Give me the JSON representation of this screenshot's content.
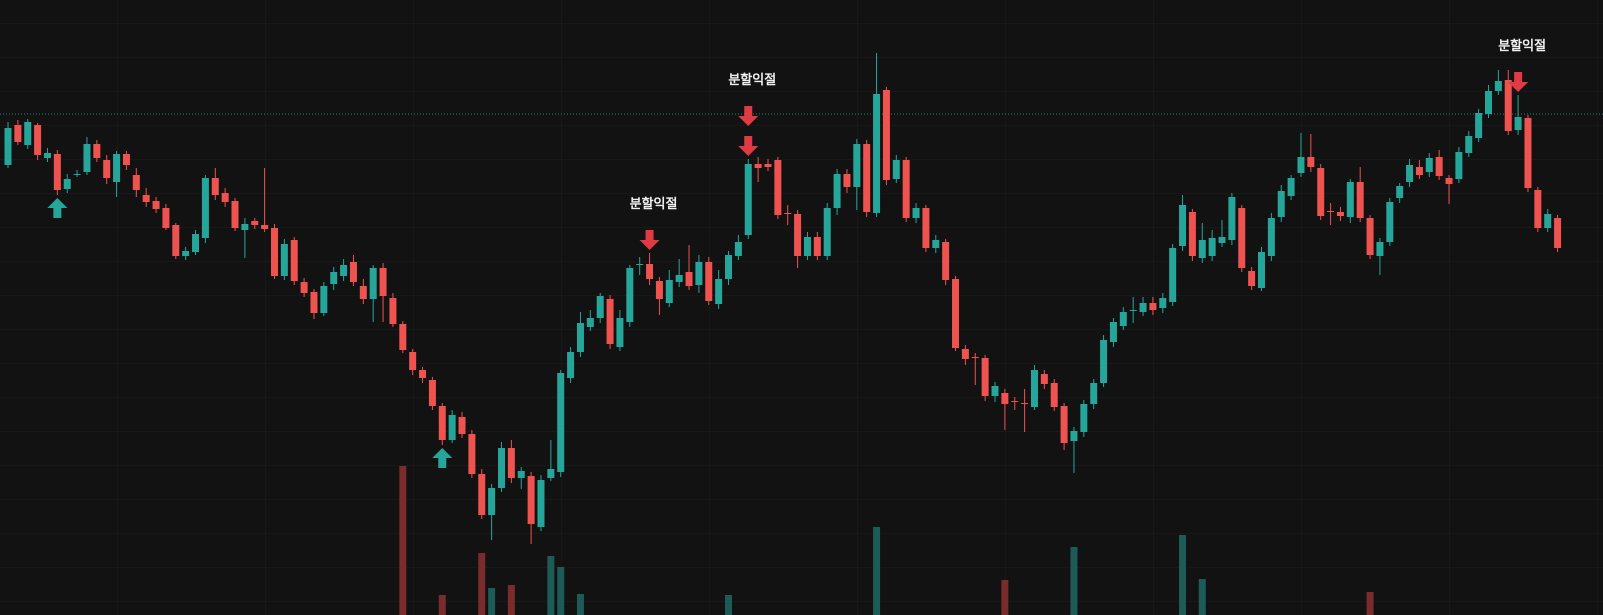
{
  "chart_data": {
    "type": "candlestick",
    "up_color": "#26a69a",
    "down_color": "#ef5350",
    "volume_up_color": "#1d5b56",
    "volume_down_color": "#7a2b2b",
    "ylim": [
      0,
      615
    ],
    "vlim": [
      0,
      150
    ],
    "hline": {
      "value": 501,
      "color": "#26a69a"
    },
    "ohlc": [
      [
        450,
        493,
        447,
        487
      ],
      [
        490,
        495,
        470,
        473
      ],
      [
        470,
        496,
        466,
        493
      ],
      [
        490,
        492,
        455,
        460
      ],
      [
        457,
        467,
        453,
        462
      ],
      [
        461,
        465,
        420,
        425
      ],
      [
        426,
        441,
        422,
        436
      ],
      [
        440,
        445,
        438,
        441
      ],
      [
        443,
        478,
        440,
        471
      ],
      [
        471,
        475,
        453,
        457
      ],
      [
        455,
        460,
        431,
        437
      ],
      [
        433,
        464,
        418,
        461
      ],
      [
        461,
        464,
        445,
        450
      ],
      [
        440,
        447,
        418,
        425
      ],
      [
        420,
        427,
        408,
        413
      ],
      [
        414,
        418,
        402,
        406
      ],
      [
        407,
        411,
        385,
        387
      ],
      [
        390,
        392,
        356,
        359
      ],
      [
        359,
        368,
        355,
        364
      ],
      [
        363,
        385,
        360,
        381
      ],
      [
        377,
        440,
        372,
        437
      ],
      [
        437,
        447,
        415,
        420
      ],
      [
        422,
        427,
        408,
        413
      ],
      [
        414,
        417,
        384,
        387
      ],
      [
        385,
        397,
        357,
        391
      ],
      [
        394,
        397,
        386,
        390
      ],
      [
        390,
        447,
        383,
        386
      ],
      [
        387,
        391,
        336,
        339
      ],
      [
        339,
        376,
        335,
        371
      ],
      [
        375,
        378,
        330,
        334
      ],
      [
        333,
        337,
        318,
        322
      ],
      [
        323,
        326,
        296,
        302
      ],
      [
        302,
        333,
        299,
        329
      ],
      [
        331,
        348,
        325,
        343
      ],
      [
        339,
        356,
        334,
        350
      ],
      [
        353,
        360,
        329,
        333
      ],
      [
        329,
        336,
        311,
        316
      ],
      [
        316,
        350,
        293,
        347
      ],
      [
        347,
        352,
        293,
        319
      ],
      [
        317,
        322,
        288,
        291
      ],
      [
        291,
        294,
        262,
        265
      ],
      [
        263,
        266,
        240,
        245
      ],
      [
        245,
        248,
        232,
        237
      ],
      [
        235,
        238,
        205,
        209
      ],
      [
        209,
        212,
        170,
        175
      ],
      [
        175,
        205,
        172,
        200
      ],
      [
        198,
        203,
        177,
        181
      ],
      [
        181,
        185,
        137,
        141
      ],
      [
        141,
        146,
        96,
        100
      ],
      [
        100,
        131,
        75,
        127
      ],
      [
        127,
        173,
        123,
        167
      ],
      [
        167,
        175,
        132,
        137
      ],
      [
        137,
        148,
        126,
        144
      ],
      [
        139,
        143,
        71,
        91
      ],
      [
        88,
        140,
        84,
        135
      ],
      [
        137,
        175,
        134,
        146
      ],
      [
        143,
        245,
        138,
        242
      ],
      [
        237,
        268,
        232,
        263
      ],
      [
        263,
        303,
        258,
        292
      ],
      [
        288,
        305,
        284,
        297
      ],
      [
        297,
        322,
        292,
        319
      ],
      [
        316,
        320,
        266,
        271
      ],
      [
        268,
        305,
        264,
        297
      ],
      [
        293,
        350,
        288,
        347
      ],
      [
        350,
        358,
        340,
        351
      ],
      [
        351,
        362,
        330,
        336
      ],
      [
        334,
        338,
        300,
        316
      ],
      [
        312,
        345,
        308,
        335
      ],
      [
        333,
        356,
        328,
        340
      ],
      [
        343,
        370,
        325,
        329
      ],
      [
        330,
        360,
        322,
        353
      ],
      [
        353,
        358,
        310,
        314
      ],
      [
        311,
        345,
        306,
        336
      ],
      [
        336,
        364,
        330,
        360
      ],
      [
        359,
        380,
        355,
        373
      ],
      [
        380,
        456,
        376,
        451
      ],
      [
        451,
        458,
        433,
        447
      ],
      [
        451,
        456,
        444,
        448
      ],
      [
        455,
        458,
        396,
        400
      ],
      [
        402,
        410,
        390,
        401
      ],
      [
        401,
        405,
        347,
        359
      ],
      [
        359,
        383,
        355,
        378
      ],
      [
        378,
        383,
        355,
        359
      ],
      [
        359,
        412,
        355,
        407
      ],
      [
        407,
        446,
        400,
        441
      ],
      [
        441,
        446,
        422,
        428
      ],
      [
        428,
        476,
        405,
        471
      ],
      [
        471,
        475,
        398,
        403
      ],
      [
        402,
        562,
        398,
        521
      ],
      [
        525,
        528,
        430,
        435
      ],
      [
        436,
        460,
        432,
        455
      ],
      [
        455,
        458,
        393,
        397
      ],
      [
        397,
        412,
        392,
        407
      ],
      [
        407,
        410,
        363,
        367
      ],
      [
        367,
        380,
        362,
        375
      ],
      [
        373,
        376,
        330,
        335
      ],
      [
        336,
        339,
        264,
        267
      ],
      [
        266,
        270,
        250,
        256
      ],
      [
        258,
        262,
        230,
        257
      ],
      [
        257,
        260,
        214,
        219
      ],
      [
        219,
        233,
        213,
        229
      ],
      [
        222,
        226,
        185,
        211
      ],
      [
        214,
        218,
        205,
        213
      ],
      [
        212,
        226,
        183,
        211
      ],
      [
        208,
        250,
        205,
        245
      ],
      [
        241,
        245,
        226,
        231
      ],
      [
        232,
        236,
        204,
        208
      ],
      [
        209,
        212,
        165,
        172
      ],
      [
        174,
        188,
        142,
        184
      ],
      [
        183,
        215,
        178,
        211
      ],
      [
        211,
        236,
        206,
        232
      ],
      [
        232,
        280,
        228,
        275
      ],
      [
        273,
        297,
        268,
        293
      ],
      [
        289,
        308,
        285,
        303
      ],
      [
        304,
        318,
        292,
        305
      ],
      [
        303,
        318,
        299,
        312
      ],
      [
        312,
        318,
        300,
        305
      ],
      [
        307,
        322,
        302,
        317
      ],
      [
        313,
        371,
        309,
        367
      ],
      [
        369,
        420,
        364,
        410
      ],
      [
        403,
        406,
        354,
        359
      ],
      [
        357,
        392,
        352,
        375
      ],
      [
        359,
        385,
        354,
        377
      ],
      [
        372,
        395,
        368,
        378
      ],
      [
        375,
        422,
        370,
        418
      ],
      [
        407,
        410,
        343,
        347
      ],
      [
        344,
        348,
        325,
        329
      ],
      [
        327,
        368,
        324,
        363
      ],
      [
        359,
        402,
        354,
        397
      ],
      [
        398,
        430,
        393,
        424
      ],
      [
        419,
        440,
        415,
        437
      ],
      [
        442,
        482,
        438,
        458
      ],
      [
        458,
        481,
        443,
        448
      ],
      [
        447,
        451,
        395,
        399
      ],
      [
        404,
        412,
        390,
        403
      ],
      [
        403,
        408,
        394,
        399
      ],
      [
        398,
        436,
        392,
        433
      ],
      [
        433,
        448,
        393,
        397
      ],
      [
        397,
        400,
        356,
        360
      ],
      [
        359,
        377,
        340,
        373
      ],
      [
        373,
        417,
        369,
        413
      ],
      [
        417,
        432,
        412,
        429
      ],
      [
        433,
        456,
        428,
        450
      ],
      [
        448,
        455,
        436,
        440
      ],
      [
        443,
        462,
        438,
        457
      ],
      [
        458,
        465,
        435,
        439
      ],
      [
        437,
        440,
        411,
        431
      ],
      [
        436,
        468,
        432,
        463
      ],
      [
        462,
        484,
        458,
        479
      ],
      [
        477,
        506,
        473,
        502
      ],
      [
        501,
        530,
        497,
        524
      ],
      [
        524,
        545,
        520,
        534
      ],
      [
        535,
        545,
        480,
        484
      ],
      [
        485,
        520,
        480,
        498
      ],
      [
        497,
        500,
        423,
        427
      ],
      [
        425,
        428,
        383,
        387
      ],
      [
        387,
        406,
        383,
        401
      ],
      [
        397,
        400,
        363,
        367
      ]
    ],
    "volume": [
      null,
      null,
      null,
      null,
      null,
      null,
      null,
      null,
      null,
      null,
      null,
      null,
      null,
      null,
      null,
      null,
      null,
      null,
      null,
      null,
      null,
      null,
      null,
      null,
      null,
      null,
      null,
      null,
      null,
      null,
      null,
      null,
      null,
      null,
      null,
      null,
      null,
      null,
      null,
      null,
      136,
      null,
      null,
      null,
      7,
      null,
      null,
      null,
      49,
      14,
      null,
      17,
      null,
      null,
      null,
      46,
      35,
      null,
      8,
      null,
      null,
      null,
      null,
      null,
      null,
      null,
      null,
      null,
      null,
      null,
      null,
      null,
      null,
      7,
      null,
      null,
      null,
      null,
      null,
      null,
      null,
      null,
      null,
      null,
      null,
      null,
      null,
      null,
      75,
      null,
      null,
      null,
      null,
      null,
      null,
      null,
      null,
      null,
      null,
      null,
      null,
      22,
      null,
      null,
      null,
      null,
      null,
      null,
      55,
      null,
      null,
      null,
      null,
      null,
      null,
      null,
      null,
      null,
      null,
      67,
      null,
      23,
      null,
      null,
      null,
      null,
      null,
      null,
      null,
      null,
      null,
      null,
      null,
      null,
      null,
      null,
      null,
      null,
      10,
      null,
      null,
      null,
      null,
      null,
      null,
      null,
      null,
      null,
      null,
      null,
      null,
      null,
      null,
      null,
      null,
      null,
      null,
      null
    ],
    "signals": [
      {
        "index": 5,
        "side": "up",
        "color": "#26a69a"
      },
      {
        "index": 44,
        "side": "up",
        "color": "#26a69a"
      },
      {
        "index": 65,
        "side": "down",
        "color": "#e03a45",
        "label": "분할익절"
      },
      {
        "index": 75,
        "side": "down",
        "color": "#e03a45"
      },
      {
        "index": 75,
        "side": "down",
        "color": "#e03a45",
        "label": "분할익절"
      },
      {
        "index": 153,
        "side": "down",
        "color": "#e03a45",
        "label": "분할익절"
      }
    ]
  }
}
